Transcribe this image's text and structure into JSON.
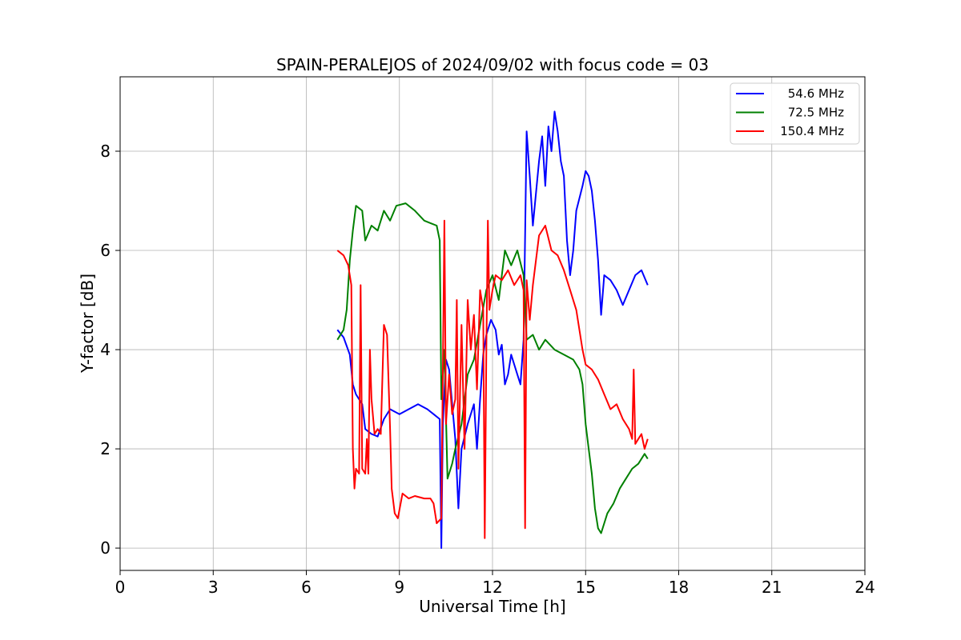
{
  "chart_data": {
    "type": "line",
    "title": "SPAIN-PERALEJOS of 2024/09/02 with focus code = 03",
    "xlabel": "Universal Time [h]",
    "ylabel": "Y-factor [dB]",
    "xlim": [
      0,
      24
    ],
    "ylim": [
      -0.45,
      9.5
    ],
    "xticks": [
      0,
      3,
      6,
      9,
      12,
      15,
      18,
      21,
      24
    ],
    "yticks": [
      0,
      2,
      4,
      6,
      8
    ],
    "grid": true,
    "legend_position": "top-right",
    "series": [
      {
        "name": "54.6 MHz",
        "color": "#0000ff",
        "points": [
          [
            7.0,
            4.4
          ],
          [
            7.2,
            4.25
          ],
          [
            7.4,
            3.9
          ],
          [
            7.5,
            3.3
          ],
          [
            7.6,
            3.1
          ],
          [
            7.8,
            2.9
          ],
          [
            7.9,
            2.4
          ],
          [
            8.1,
            2.3
          ],
          [
            8.3,
            2.25
          ],
          [
            8.5,
            2.6
          ],
          [
            8.7,
            2.8
          ],
          [
            9.0,
            2.7
          ],
          [
            9.3,
            2.8
          ],
          [
            9.6,
            2.9
          ],
          [
            9.9,
            2.8
          ],
          [
            10.1,
            2.7
          ],
          [
            10.3,
            2.6
          ],
          [
            10.35,
            0.0
          ],
          [
            10.4,
            2.5
          ],
          [
            10.5,
            3.8
          ],
          [
            10.6,
            3.6
          ],
          [
            10.8,
            2.2
          ],
          [
            10.9,
            0.8
          ],
          [
            11.0,
            2.0
          ],
          [
            11.2,
            2.5
          ],
          [
            11.4,
            2.9
          ],
          [
            11.5,
            2.0
          ],
          [
            11.6,
            3.0
          ],
          [
            11.7,
            3.9
          ],
          [
            11.8,
            4.3
          ],
          [
            11.95,
            4.6
          ],
          [
            12.1,
            4.4
          ],
          [
            12.2,
            3.9
          ],
          [
            12.3,
            4.1
          ],
          [
            12.4,
            3.3
          ],
          [
            12.5,
            3.5
          ],
          [
            12.6,
            3.9
          ],
          [
            12.8,
            3.5
          ],
          [
            12.9,
            3.3
          ],
          [
            13.0,
            4.2
          ],
          [
            13.1,
            8.4
          ],
          [
            13.2,
            7.5
          ],
          [
            13.3,
            6.5
          ],
          [
            13.5,
            7.8
          ],
          [
            13.6,
            8.3
          ],
          [
            13.7,
            7.3
          ],
          [
            13.8,
            8.5
          ],
          [
            13.9,
            8.0
          ],
          [
            14.0,
            8.8
          ],
          [
            14.1,
            8.4
          ],
          [
            14.2,
            7.8
          ],
          [
            14.3,
            7.5
          ],
          [
            14.4,
            6.2
          ],
          [
            14.5,
            5.5
          ],
          [
            14.6,
            6.0
          ],
          [
            14.7,
            6.8
          ],
          [
            14.9,
            7.3
          ],
          [
            15.0,
            7.6
          ],
          [
            15.1,
            7.5
          ],
          [
            15.2,
            7.2
          ],
          [
            15.3,
            6.6
          ],
          [
            15.4,
            5.8
          ],
          [
            15.5,
            4.7
          ],
          [
            15.6,
            5.5
          ],
          [
            15.8,
            5.4
          ],
          [
            16.0,
            5.2
          ],
          [
            16.2,
            4.9
          ],
          [
            16.4,
            5.2
          ],
          [
            16.6,
            5.5
          ],
          [
            16.8,
            5.6
          ],
          [
            17.0,
            5.3
          ]
        ]
      },
      {
        "name": "72.5 MHz",
        "color": "#008000",
        "points": [
          [
            7.0,
            4.2
          ],
          [
            7.2,
            4.4
          ],
          [
            7.3,
            4.8
          ],
          [
            7.4,
            5.8
          ],
          [
            7.5,
            6.4
          ],
          [
            7.6,
            6.9
          ],
          [
            7.8,
            6.8
          ],
          [
            7.9,
            6.2
          ],
          [
            8.1,
            6.5
          ],
          [
            8.3,
            6.4
          ],
          [
            8.5,
            6.8
          ],
          [
            8.7,
            6.6
          ],
          [
            8.9,
            6.9
          ],
          [
            9.2,
            6.95
          ],
          [
            9.5,
            6.8
          ],
          [
            9.8,
            6.6
          ],
          [
            10.0,
            6.55
          ],
          [
            10.2,
            6.5
          ],
          [
            10.3,
            6.2
          ],
          [
            10.35,
            3.0
          ],
          [
            10.45,
            4.0
          ],
          [
            10.55,
            1.4
          ],
          [
            10.7,
            1.7
          ],
          [
            10.8,
            2.0
          ],
          [
            11.0,
            2.5
          ],
          [
            11.2,
            3.5
          ],
          [
            11.4,
            3.8
          ],
          [
            11.6,
            4.5
          ],
          [
            11.8,
            5.2
          ],
          [
            12.0,
            5.5
          ],
          [
            12.2,
            5.0
          ],
          [
            12.4,
            6.0
          ],
          [
            12.6,
            5.7
          ],
          [
            12.8,
            6.0
          ],
          [
            13.0,
            5.5
          ],
          [
            13.1,
            4.2
          ],
          [
            13.3,
            4.3
          ],
          [
            13.5,
            4.0
          ],
          [
            13.7,
            4.2
          ],
          [
            14.0,
            4.0
          ],
          [
            14.3,
            3.9
          ],
          [
            14.6,
            3.8
          ],
          [
            14.8,
            3.6
          ],
          [
            14.9,
            3.3
          ],
          [
            15.0,
            2.5
          ],
          [
            15.1,
            2.0
          ],
          [
            15.2,
            1.5
          ],
          [
            15.3,
            0.8
          ],
          [
            15.4,
            0.4
          ],
          [
            15.5,
            0.3
          ],
          [
            15.7,
            0.7
          ],
          [
            15.9,
            0.9
          ],
          [
            16.1,
            1.2
          ],
          [
            16.3,
            1.4
          ],
          [
            16.5,
            1.6
          ],
          [
            16.7,
            1.7
          ],
          [
            16.9,
            1.9
          ],
          [
            17.0,
            1.8
          ]
        ]
      },
      {
        "name": "150.4 MHz",
        "color": "#ff0000",
        "points": [
          [
            7.0,
            6.0
          ],
          [
            7.2,
            5.9
          ],
          [
            7.35,
            5.7
          ],
          [
            7.45,
            5.3
          ],
          [
            7.5,
            2.0
          ],
          [
            7.55,
            1.2
          ],
          [
            7.6,
            1.6
          ],
          [
            7.7,
            1.5
          ],
          [
            7.75,
            5.3
          ],
          [
            7.8,
            1.6
          ],
          [
            7.9,
            1.5
          ],
          [
            7.95,
            2.2
          ],
          [
            8.0,
            1.5
          ],
          [
            8.05,
            4.0
          ],
          [
            8.1,
            3.0
          ],
          [
            8.2,
            2.3
          ],
          [
            8.3,
            2.4
          ],
          [
            8.4,
            2.3
          ],
          [
            8.5,
            4.5
          ],
          [
            8.6,
            4.3
          ],
          [
            8.7,
            2.4
          ],
          [
            8.75,
            1.2
          ],
          [
            8.85,
            0.7
          ],
          [
            8.95,
            0.6
          ],
          [
            9.1,
            1.1
          ],
          [
            9.3,
            1.0
          ],
          [
            9.5,
            1.05
          ],
          [
            9.8,
            1.0
          ],
          [
            10.0,
            1.0
          ],
          [
            10.1,
            0.9
          ],
          [
            10.2,
            0.5
          ],
          [
            10.35,
            0.6
          ],
          [
            10.45,
            6.6
          ],
          [
            10.5,
            2.5
          ],
          [
            10.6,
            3.5
          ],
          [
            10.7,
            2.7
          ],
          [
            10.8,
            3.0
          ],
          [
            10.85,
            5.0
          ],
          [
            10.9,
            1.6
          ],
          [
            11.0,
            4.5
          ],
          [
            11.1,
            2.0
          ],
          [
            11.2,
            5.0
          ],
          [
            11.3,
            4.0
          ],
          [
            11.4,
            4.7
          ],
          [
            11.5,
            3.2
          ],
          [
            11.6,
            5.2
          ],
          [
            11.7,
            4.8
          ],
          [
            11.75,
            0.2
          ],
          [
            11.8,
            4.0
          ],
          [
            11.85,
            6.6
          ],
          [
            11.9,
            4.8
          ],
          [
            12.0,
            5.2
          ],
          [
            12.1,
            5.5
          ],
          [
            12.3,
            5.4
          ],
          [
            12.5,
            5.6
          ],
          [
            12.7,
            5.3
          ],
          [
            12.9,
            5.5
          ],
          [
            13.0,
            5.2
          ],
          [
            13.05,
            0.4
          ],
          [
            13.1,
            5.4
          ],
          [
            13.2,
            4.6
          ],
          [
            13.3,
            5.3
          ],
          [
            13.5,
            6.3
          ],
          [
            13.7,
            6.5
          ],
          [
            13.9,
            6.0
          ],
          [
            14.1,
            5.9
          ],
          [
            14.3,
            5.6
          ],
          [
            14.5,
            5.2
          ],
          [
            14.7,
            4.8
          ],
          [
            14.9,
            4.0
          ],
          [
            15.0,
            3.7
          ],
          [
            15.2,
            3.6
          ],
          [
            15.4,
            3.4
          ],
          [
            15.6,
            3.1
          ],
          [
            15.8,
            2.8
          ],
          [
            16.0,
            2.9
          ],
          [
            16.2,
            2.6
          ],
          [
            16.4,
            2.4
          ],
          [
            16.5,
            2.2
          ],
          [
            16.55,
            3.6
          ],
          [
            16.6,
            2.1
          ],
          [
            16.7,
            2.2
          ],
          [
            16.8,
            2.3
          ],
          [
            16.9,
            2.0
          ],
          [
            17.0,
            2.2
          ]
        ]
      }
    ]
  }
}
